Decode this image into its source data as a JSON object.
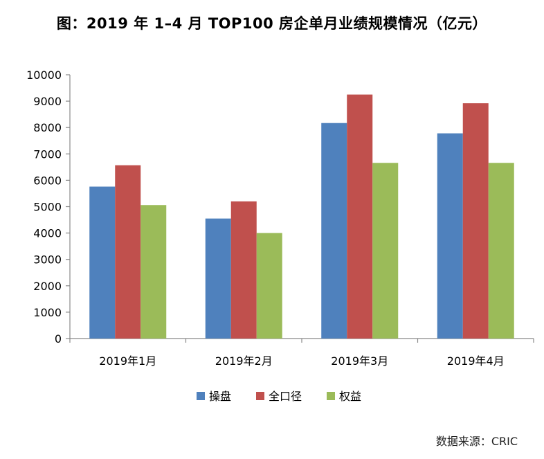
{
  "chart_data": {
    "type": "bar",
    "title": "图：2019 年 1–4 月 TOP100 房企单月业绩规模情况（亿元）",
    "categories": [
      "2019年1月",
      "2019年2月",
      "2019年3月",
      "2019年4月"
    ],
    "series": [
      {
        "name": "操盘",
        "color": "#4f81bd",
        "values": [
          5760,
          4550,
          8170,
          7780
        ]
      },
      {
        "name": "全口径",
        "color": "#c0504d",
        "values": [
          6570,
          5200,
          9250,
          8920
        ]
      },
      {
        "name": "权益",
        "color": "#9bbb59",
        "values": [
          5060,
          4000,
          6660,
          6660
        ]
      }
    ],
    "ylim": [
      0,
      10000
    ],
    "yticks": [
      0,
      1000,
      2000,
      3000,
      4000,
      5000,
      6000,
      7000,
      8000,
      9000,
      10000
    ],
    "grid": false,
    "legend_position": "bottom"
  },
  "source": "数据来源：CRIC"
}
